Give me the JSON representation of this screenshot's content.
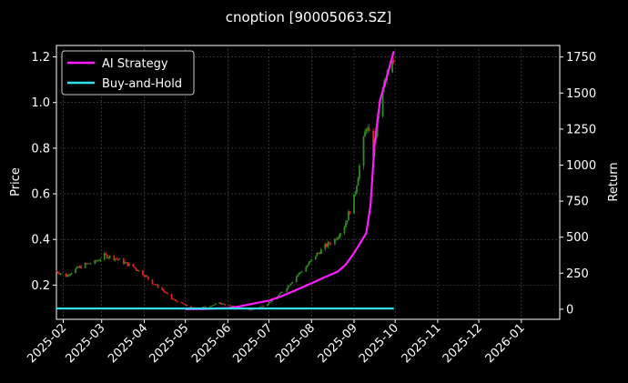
{
  "chart_data": {
    "type": "line",
    "title": "cnoption [90005063.SZ]",
    "xlabel": "",
    "ylabel": "Price",
    "y2label": "Return",
    "x_tick_labels": [
      "2025-02",
      "2025-03",
      "2025-04",
      "2025-05",
      "2025-06",
      "2025-07",
      "2025-08",
      "2025-09",
      "2025-10",
      "2025-11",
      "2025-12",
      "2026-01"
    ],
    "y_ticks": [
      0.2,
      0.4,
      0.6,
      0.8,
      1.0,
      1.2
    ],
    "y2_ticks": [
      0,
      250,
      500,
      750,
      1000,
      1250,
      1500,
      1750
    ],
    "ylim": [
      0.05,
      1.25
    ],
    "y2lim": [
      -70,
      1830
    ],
    "xlim": [
      "2025-01-27",
      "2026-01-29"
    ],
    "grid": true,
    "legend_position": "top-left",
    "legend": [
      {
        "name": "AI Strategy",
        "color": "#ff1aff"
      },
      {
        "name": "Buy-and-Hold",
        "color": "#33e0ee"
      }
    ],
    "price_series": {
      "name": "Price",
      "up_color": "#2e8b22",
      "down_color": "#e0221b",
      "points": [
        [
          "2025-01-27",
          0.26
        ],
        [
          "2025-02-03",
          0.24
        ],
        [
          "2025-02-10",
          0.27
        ],
        [
          "2025-02-17",
          0.29
        ],
        [
          "2025-02-24",
          0.3
        ],
        [
          "2025-03-03",
          0.33
        ],
        [
          "2025-03-10",
          0.32
        ],
        [
          "2025-03-17",
          0.3
        ],
        [
          "2025-03-24",
          0.28
        ],
        [
          "2025-03-31",
          0.25
        ],
        [
          "2025-04-07",
          0.21
        ],
        [
          "2025-04-14",
          0.18
        ],
        [
          "2025-04-21",
          0.14
        ],
        [
          "2025-04-28",
          0.12
        ],
        [
          "2025-05-05",
          0.1
        ],
        [
          "2025-05-12",
          0.1
        ],
        [
          "2025-05-19",
          0.11
        ],
        [
          "2025-05-26",
          0.12
        ],
        [
          "2025-06-02",
          0.11
        ],
        [
          "2025-06-09",
          0.1
        ],
        [
          "2025-06-16",
          0.09
        ],
        [
          "2025-06-23",
          0.1
        ],
        [
          "2025-06-30",
          0.12
        ],
        [
          "2025-07-07",
          0.15
        ],
        [
          "2025-07-14",
          0.19
        ],
        [
          "2025-07-21",
          0.24
        ],
        [
          "2025-07-28",
          0.28
        ],
        [
          "2025-08-04",
          0.33
        ],
        [
          "2025-08-11",
          0.37
        ],
        [
          "2025-08-18",
          0.4
        ],
        [
          "2025-08-25",
          0.46
        ],
        [
          "2025-09-01",
          0.58
        ],
        [
          "2025-09-05",
          0.72
        ],
        [
          "2025-09-10",
          0.9
        ],
        [
          "2025-09-15",
          0.78
        ],
        [
          "2025-09-19",
          0.95
        ],
        [
          "2025-09-23",
          1.08
        ],
        [
          "2025-09-26",
          1.12
        ],
        [
          "2025-09-30",
          1.18
        ]
      ]
    },
    "series": [
      {
        "name": "AI Strategy",
        "color": "#ff1aff",
        "axis": "right",
        "points": [
          [
            "2025-05-01",
            0
          ],
          [
            "2025-05-15",
            2
          ],
          [
            "2025-06-01",
            8
          ],
          [
            "2025-06-10",
            20
          ],
          [
            "2025-06-20",
            40
          ],
          [
            "2025-07-01",
            60
          ],
          [
            "2025-07-10",
            90
          ],
          [
            "2025-07-20",
            130
          ],
          [
            "2025-08-01",
            180
          ],
          [
            "2025-08-10",
            220
          ],
          [
            "2025-08-20",
            260
          ],
          [
            "2025-08-26",
            310
          ],
          [
            "2025-09-01",
            390
          ],
          [
            "2025-09-05",
            450
          ],
          [
            "2025-09-10",
            530
          ],
          [
            "2025-09-13",
            720
          ],
          [
            "2025-09-16",
            1150
          ],
          [
            "2025-09-20",
            1450
          ],
          [
            "2025-09-23",
            1550
          ],
          [
            "2025-09-26",
            1650
          ],
          [
            "2025-09-30",
            1790
          ]
        ]
      },
      {
        "name": "Buy-and-Hold",
        "color": "#33e0ee",
        "axis": "right",
        "points": [
          [
            "2025-01-27",
            5
          ],
          [
            "2025-09-30",
            5
          ]
        ]
      }
    ]
  }
}
